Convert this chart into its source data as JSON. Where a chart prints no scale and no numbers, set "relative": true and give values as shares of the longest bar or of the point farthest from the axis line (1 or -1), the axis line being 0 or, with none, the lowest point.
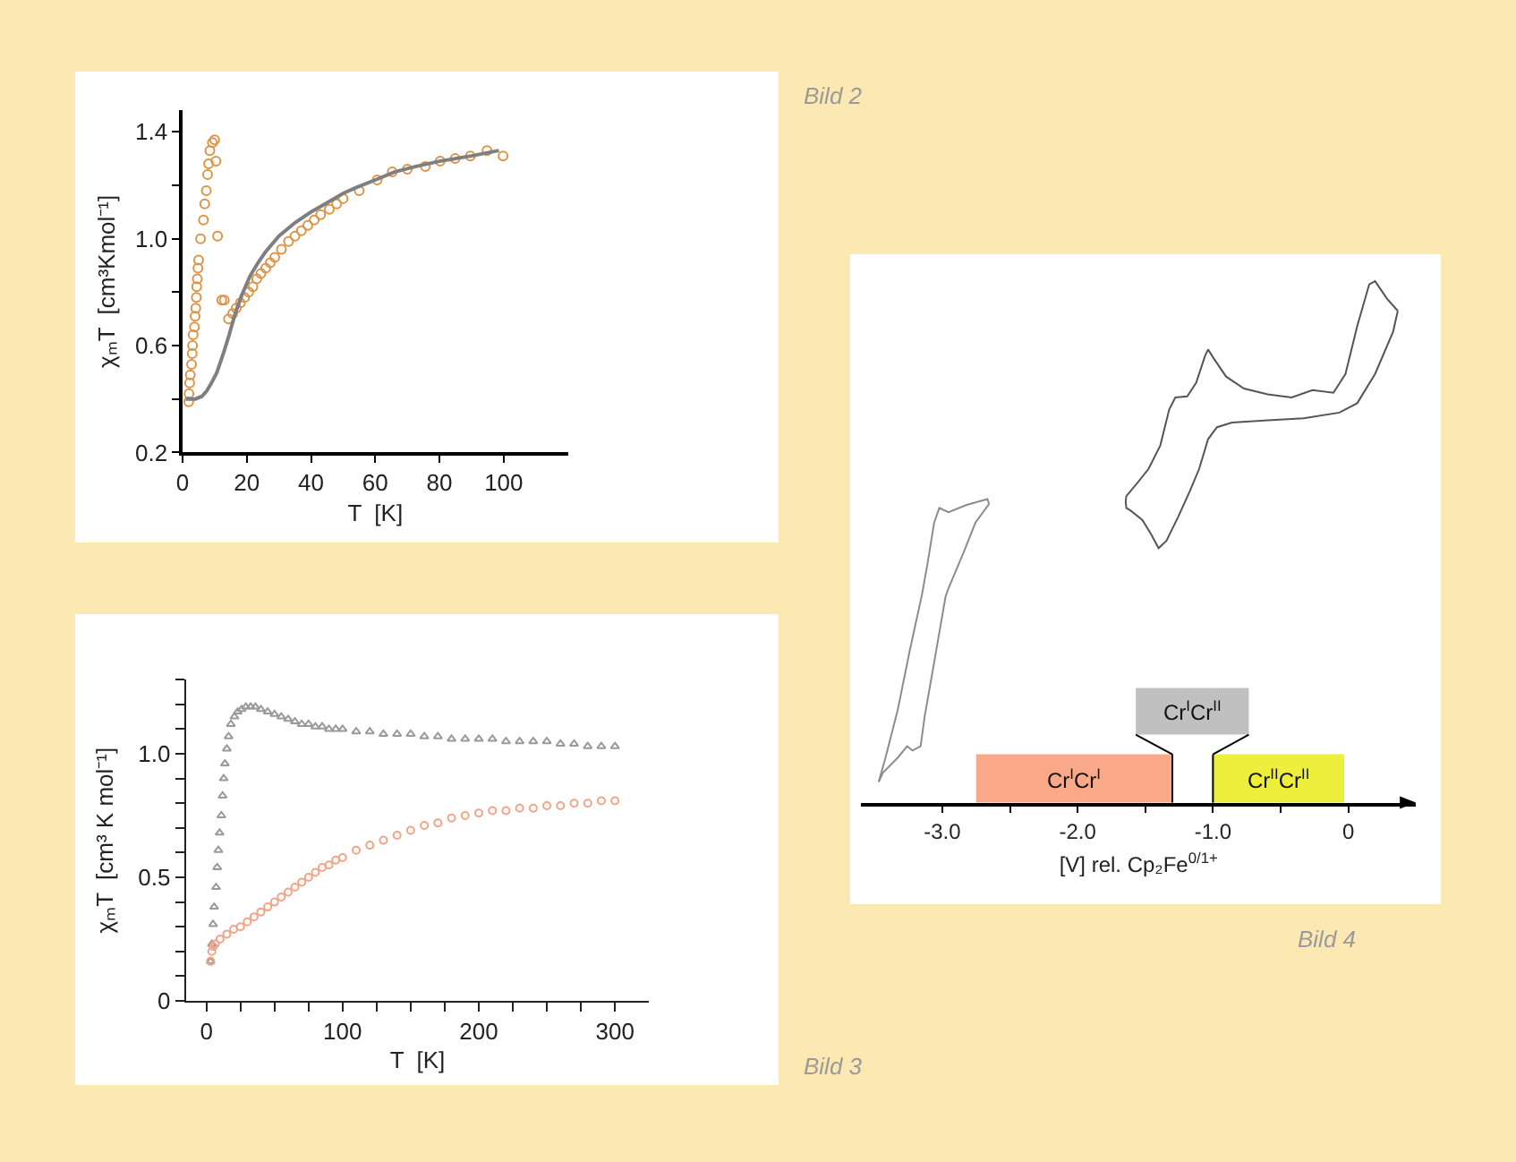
{
  "chart_data": [
    {
      "type": "scatter",
      "annotations": [
        "Bild 2"
      ],
      "xlabel": "T  [K]",
      "ylabel": "χₘT  [cm³Kmol⁻¹]",
      "xlim": [
        0,
        120
      ],
      "xticks": [
        0,
        20,
        40,
        60,
        80,
        100
      ],
      "ylim": [
        0.2,
        1.48
      ],
      "yticks": [
        0.2,
        {
          "value": 0.4,
          "label": null
        },
        0.6,
        {
          "value": 0.8,
          "label": null
        },
        {
          "value": 1.0,
          "label": "1.0"
        },
        {
          "value": 1.2,
          "label": null
        },
        1.4
      ],
      "series": [
        {
          "type": "scatter",
          "marker": "circle",
          "color": "#dc9448",
          "x": [
            1.9,
            2.0,
            2.2,
            2.4,
            2.8,
            3.0,
            3.1,
            3.3,
            3.7,
            3.9,
            4.1,
            4.3,
            4.4,
            4.6,
            4.8,
            5.0,
            5.6,
            6.5,
            6.9,
            7.4,
            7.8,
            8.1,
            8.5,
            9.3,
            10.0,
            10.4,
            10.9,
            12.2,
            13.0,
            14.3,
            15.6,
            16.7,
            18.0,
            19.3,
            20.6,
            21.9,
            23.1,
            24.4,
            25.9,
            27.3,
            28.7,
            30.8,
            33.0,
            35.0,
            37.0,
            39.0,
            41.0,
            43.0,
            45.7,
            48.0,
            50.0,
            55.0,
            60.6,
            65.3,
            70.0,
            75.6,
            80.2,
            84.9,
            89.6,
            94.8,
            99.8
          ],
          "values": [
            0.39,
            0.42,
            0.46,
            0.49,
            0.53,
            0.57,
            0.6,
            0.64,
            0.67,
            0.71,
            0.74,
            0.78,
            0.82,
            0.85,
            0.89,
            0.92,
            1.0,
            1.07,
            1.13,
            1.18,
            1.24,
            1.28,
            1.33,
            1.36,
            1.37,
            1.29,
            1.01,
            0.77,
            0.77,
            0.7,
            0.72,
            0.74,
            0.76,
            0.78,
            0.8,
            0.82,
            0.85,
            0.87,
            0.89,
            0.91,
            0.93,
            0.96,
            0.99,
            1.01,
            1.03,
            1.05,
            1.07,
            1.09,
            1.11,
            1.13,
            1.15,
            1.18,
            1.22,
            1.25,
            1.26,
            1.27,
            1.29,
            1.3,
            1.31,
            1.33,
            1.31
          ]
        },
        {
          "type": "line",
          "color": "#7f7f7f",
          "x": [
            1.0,
            4.0,
            6.0,
            7.5,
            9.0,
            10.7,
            12.7,
            14.5,
            16.4,
            18.5,
            21.0,
            23.5,
            25.8,
            30.0,
            35.0,
            40.0,
            44.4,
            50.0,
            53.8,
            60.0,
            66.0,
            72.4,
            80.0,
            90.0,
            98.5
          ],
          "values": [
            0.4,
            0.4,
            0.41,
            0.43,
            0.46,
            0.5,
            0.57,
            0.64,
            0.72,
            0.79,
            0.86,
            0.91,
            0.95,
            1.01,
            1.06,
            1.1,
            1.13,
            1.17,
            1.19,
            1.22,
            1.25,
            1.27,
            1.29,
            1.31,
            1.33
          ]
        }
      ]
    },
    {
      "type": "scatter",
      "annotations": [
        "Bild 3"
      ],
      "xlabel": "T  [K]",
      "ylabel": "χₘT  [cm³ K mol⁻¹]",
      "xlim": [
        -15,
        325
      ],
      "xticks": [
        0,
        {
          "value": 25,
          "label": null
        },
        {
          "value": 50,
          "label": null
        },
        {
          "value": 75,
          "label": null
        },
        100,
        {
          "value": 125,
          "label": null
        },
        {
          "value": 150,
          "label": null
        },
        {
          "value": 175,
          "label": null
        },
        200,
        {
          "value": 225,
          "label": null
        },
        {
          "value": 250,
          "label": null
        },
        {
          "value": 275,
          "label": null
        },
        300
      ],
      "ylim": [
        0,
        1.3
      ],
      "yticks": [
        0,
        {
          "value": 0.1,
          "label": null
        },
        {
          "value": 0.2,
          "label": null
        },
        {
          "value": 0.3,
          "label": null
        },
        {
          "value": 0.4,
          "label": null
        },
        0.5,
        {
          "value": 0.6,
          "label": null
        },
        {
          "value": 0.7,
          "label": null
        },
        {
          "value": 0.8,
          "label": null
        },
        {
          "value": 0.9,
          "label": null
        },
        {
          "value": 1.0,
          "label": "1.0"
        },
        {
          "value": 1.1,
          "label": null
        },
        {
          "value": 1.2,
          "label": null
        },
        {
          "value": 1.3,
          "label": null
        }
      ],
      "series": [
        {
          "type": "scatter",
          "marker": "triangle",
          "color": "#9a9a9a",
          "x": [
            3.1,
            4.0,
            4.9,
            5.7,
            7.1,
            7.9,
            8.8,
            9.7,
            11.0,
            11.9,
            12.7,
            13.6,
            15.0,
            16.3,
            18.0,
            20.6,
            23.0,
            25.9,
            29.0,
            32.5,
            36.0,
            40.0,
            45.0,
            50.0,
            55.0,
            60.0,
            65.0,
            70.0,
            75.0,
            80.0,
            85.0,
            90.0,
            95.0,
            100.0,
            110.0,
            120.0,
            130.0,
            140.0,
            150.0,
            160.0,
            170.0,
            180.0,
            190.0,
            200.0,
            210.0,
            220.0,
            230.0,
            240.0,
            250.0,
            260.0,
            270.0,
            280.0,
            290.0,
            300.0
          ],
          "values": [
            0.16,
            0.23,
            0.31,
            0.38,
            0.46,
            0.54,
            0.61,
            0.68,
            0.75,
            0.83,
            0.9,
            0.96,
            1.02,
            1.07,
            1.12,
            1.15,
            1.17,
            1.18,
            1.19,
            1.19,
            1.19,
            1.18,
            1.17,
            1.16,
            1.15,
            1.14,
            1.13,
            1.12,
            1.12,
            1.11,
            1.11,
            1.1,
            1.1,
            1.1,
            1.09,
            1.09,
            1.08,
            1.08,
            1.08,
            1.07,
            1.07,
            1.06,
            1.06,
            1.06,
            1.06,
            1.05,
            1.05,
            1.05,
            1.05,
            1.04,
            1.04,
            1.03,
            1.03,
            1.03
          ]
        },
        {
          "type": "scatter",
          "marker": "circle",
          "color": "#f2a488",
          "x": [
            3.1,
            4.0,
            5.0,
            6.5,
            10.0,
            15.0,
            20.0,
            25.0,
            30.0,
            35.0,
            40.0,
            45.0,
            50.0,
            55.0,
            60.0,
            65.0,
            70.0,
            75.0,
            80.0,
            85.0,
            90.0,
            95.0,
            100.0,
            110.0,
            120.0,
            130.0,
            140.0,
            150.0,
            160.0,
            170.0,
            180.0,
            190.0,
            200.0,
            210.0,
            220.0,
            230.0,
            240.0,
            250.0,
            260.0,
            270.0,
            280.0,
            290.0,
            300.0
          ],
          "values": [
            0.16,
            0.2,
            0.22,
            0.23,
            0.25,
            0.27,
            0.29,
            0.3,
            0.32,
            0.34,
            0.36,
            0.38,
            0.4,
            0.42,
            0.44,
            0.46,
            0.48,
            0.5,
            0.52,
            0.54,
            0.55,
            0.57,
            0.58,
            0.61,
            0.63,
            0.65,
            0.67,
            0.69,
            0.71,
            0.72,
            0.74,
            0.75,
            0.76,
            0.77,
            0.77,
            0.78,
            0.78,
            0.79,
            0.79,
            0.8,
            0.8,
            0.81,
            0.81
          ]
        }
      ]
    },
    {
      "type": "line",
      "relative": true,
      "annotations": [
        "Bild 4"
      ],
      "xlabel": "[V] rel. Cp₂Fe$^{0/1+}$",
      "xlim": [
        -3.6,
        0.5
      ],
      "xticks": [
        {
          "value": -3.0,
          "label": "-3.0"
        },
        {
          "value": -2.5,
          "label": null
        },
        {
          "value": -2.0,
          "label": "-2.0"
        },
        {
          "value": -1.5,
          "label": null
        },
        {
          "value": -1.0,
          "label": "-1.0"
        },
        {
          "value": -0.5,
          "label": null
        },
        0
      ],
      "bands": [
        {
          "axis": "x",
          "from": -2.75,
          "to": -1.3,
          "label": "Cr$^{I}$Cr$^{I}$",
          "color": "#f9a98a"
        },
        {
          "axis": "x",
          "from": -1.57,
          "to": -0.735,
          "label": "Cr$^{I}$Cr$^{II}$",
          "color": "#c0c0c0"
        },
        {
          "axis": "x",
          "from": -1.0,
          "to": -0.03,
          "label": "Cr$^{II}$Cr$^{II}$",
          "color": "#eeee3c"
        }
      ],
      "series": [
        {
          "color": "#8c8c8c",
          "x": [
            -2.654,
            -2.667,
            -2.82,
            -2.954,
            -3.022,
            -3.06,
            -3.11,
            -3.15,
            -3.24,
            -3.33,
            -3.42,
            -3.47
          ],
          "values": [
            0.573,
            0.582,
            0.571,
            0.557,
            0.565,
            0.537,
            0.457,
            0.399,
            0.292,
            0.177,
            0.086,
            0.04
          ]
        },
        {
          "color": "#8c8c8c",
          "x": [
            -3.47,
            -3.44,
            -3.33,
            -3.26,
            -3.22,
            -3.16,
            -3.13,
            -3.06,
            -2.976,
            -2.954,
            -2.844,
            -2.755,
            -2.654
          ],
          "values": [
            0.04,
            0.057,
            0.086,
            0.108,
            0.1,
            0.108,
            0.166,
            0.269,
            0.395,
            0.411,
            0.479,
            0.537,
            0.573
          ]
        },
        {
          "color": "#555555",
          "x": [
            -1.645,
            -1.64,
            -1.565,
            -1.476,
            -1.389,
            -1.323,
            -1.278,
            -1.19,
            -1.124,
            -1.058,
            -1.036,
            -0.992,
            -0.903,
            -0.771,
            -0.595,
            -0.418,
            -0.265,
            -0.11,
            -0.021,
            0.066,
            0.155,
            0.198,
            0.287,
            0.366
          ],
          "values": [
            0.578,
            0.588,
            0.611,
            0.64,
            0.685,
            0.754,
            0.777,
            0.779,
            0.805,
            0.857,
            0.869,
            0.851,
            0.817,
            0.794,
            0.783,
            0.777,
            0.791,
            0.786,
            0.822,
            0.914,
            0.994,
            1.0,
            0.966,
            0.943
          ]
        },
        {
          "color": "#555555",
          "x": [
            0.366,
            0.331,
            0.198,
            0.066,
            -0.066,
            -0.331,
            -0.595,
            -0.86,
            -0.97,
            -1.036,
            -1.102,
            -1.168,
            -1.257,
            -1.344,
            -1.402,
            -1.455,
            -1.521,
            -1.608,
            -1.64,
            -1.645
          ],
          "values": [
            0.943,
            0.903,
            0.822,
            0.766,
            0.748,
            0.737,
            0.733,
            0.729,
            0.72,
            0.697,
            0.64,
            0.599,
            0.548,
            0.502,
            0.488,
            0.514,
            0.542,
            0.56,
            0.565,
            0.578
          ]
        }
      ]
    }
  ]
}
